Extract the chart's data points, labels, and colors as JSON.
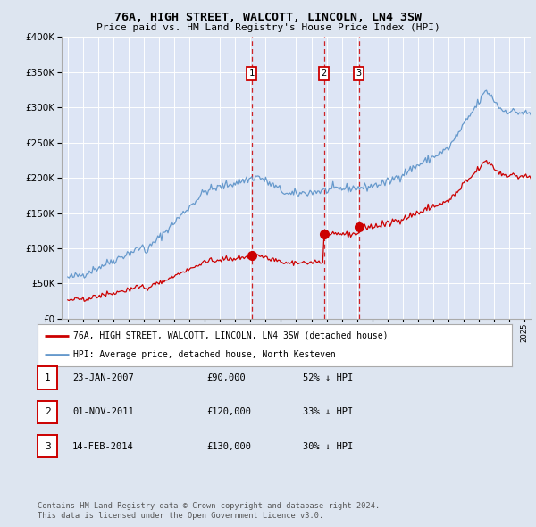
{
  "title": "76A, HIGH STREET, WALCOTT, LINCOLN, LN4 3SW",
  "subtitle": "Price paid vs. HM Land Registry's House Price Index (HPI)",
  "ylim": [
    0,
    400000
  ],
  "yticks": [
    0,
    50000,
    100000,
    150000,
    200000,
    250000,
    300000,
    350000,
    400000
  ],
  "sales": [
    {
      "date_label": "23-JAN-2007",
      "date_num": 2007.07,
      "price": 90000,
      "hpi_pct": "52% ↓ HPI",
      "num": 1
    },
    {
      "date_label": "01-NOV-2011",
      "date_num": 2011.83,
      "price": 120000,
      "hpi_pct": "33% ↓ HPI",
      "num": 2
    },
    {
      "date_label": "14-FEB-2014",
      "date_num": 2014.12,
      "price": 130000,
      "hpi_pct": "30% ↓ HPI",
      "num": 3
    }
  ],
  "legend_property": "76A, HIGH STREET, WALCOTT, LINCOLN, LN4 3SW (detached house)",
  "legend_hpi": "HPI: Average price, detached house, North Kesteven",
  "footer1": "Contains HM Land Registry data © Crown copyright and database right 2024.",
  "footer2": "This data is licensed under the Open Government Licence v3.0.",
  "property_color": "#cc0000",
  "hpi_color": "#6699cc",
  "background_color": "#dde5f0",
  "plot_bg_color": "#dde5f5"
}
